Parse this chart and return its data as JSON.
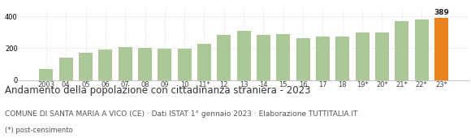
{
  "categories": [
    "2003",
    "04",
    "05",
    "06",
    "07",
    "08",
    "09",
    "10",
    "11*",
    "12",
    "13",
    "14",
    "15",
    "16",
    "17",
    "18",
    "19*",
    "20*",
    "21*",
    "22*",
    "23*"
  ],
  "values": [
    70,
    140,
    172,
    192,
    205,
    202,
    195,
    198,
    228,
    285,
    310,
    285,
    290,
    265,
    272,
    272,
    300,
    298,
    370,
    378,
    389
  ],
  "bar_colors": [
    "#adc898",
    "#adc898",
    "#adc898",
    "#adc898",
    "#adc898",
    "#adc898",
    "#adc898",
    "#adc898",
    "#adc898",
    "#adc898",
    "#adc898",
    "#adc898",
    "#adc898",
    "#adc898",
    "#adc898",
    "#adc898",
    "#adc898",
    "#adc898",
    "#adc898",
    "#adc898",
    "#e8821a"
  ],
  "last_value_label": "389",
  "ylim": [
    0,
    450
  ],
  "yticks": [
    0,
    200,
    400
  ],
  "title": "Andamento della popolazione con cittadinanza straniera - 2023",
  "subtitle": "COMUNE DI SANTA MARIA A VICO (CE) · Dati ISTAT 1° gennaio 2023 · Elaborazione TUTTITALIA.IT",
  "footnote": "(*) post-censimento",
  "title_fontsize": 8.5,
  "subtitle_fontsize": 6.5,
  "footnote_fontsize": 6.0,
  "tick_fontsize": 6.0,
  "value_label_fontsize": 6.5,
  "grid_color": "#cccccc",
  "bg_color": "#ffffff",
  "axis_color": "#aaaaaa"
}
